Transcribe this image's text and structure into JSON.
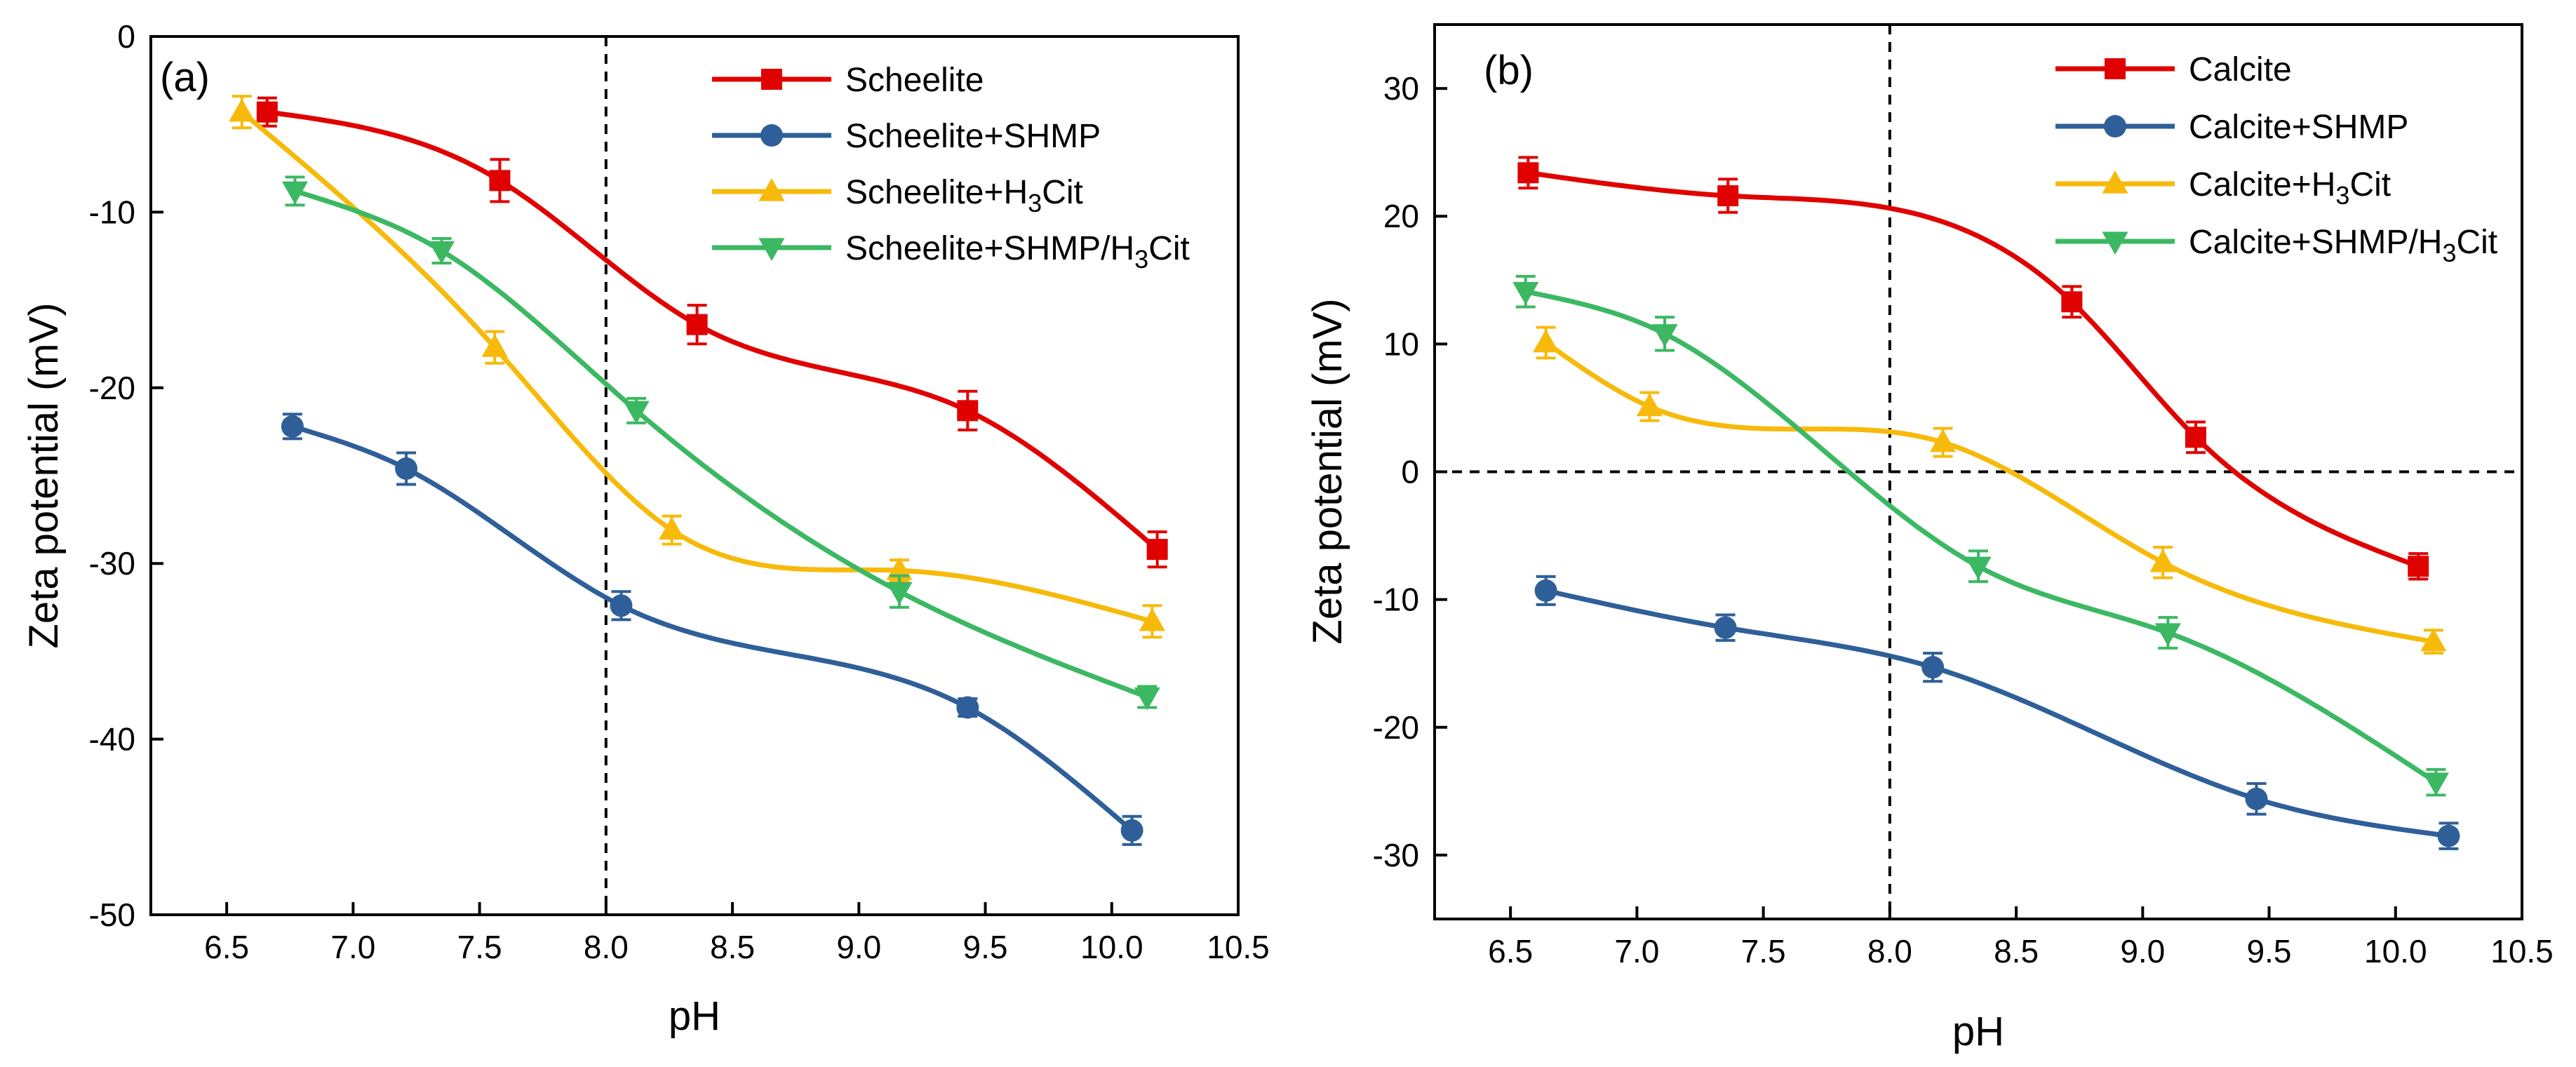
{
  "chart_data": [
    {
      "panel": "(a)",
      "type": "line",
      "xlabel": "pH",
      "ylabel": "Zeta potential (mV)",
      "xlim": [
        6.2,
        10.5
      ],
      "ylim": [
        -50,
        0
      ],
      "xticks": [
        6.5,
        7.0,
        7.5,
        8.0,
        8.5,
        9.0,
        9.5,
        10.0,
        10.5
      ],
      "yticks": [
        0,
        -10,
        -20,
        -30,
        -40,
        -50
      ],
      "xtick_labels": [
        "6.5",
        "7.0",
        "7.5",
        "8.0",
        "8.5",
        "9.0",
        "9.5",
        "10.0",
        "10.5"
      ],
      "ytick_labels": [
        "0",
        "-10",
        "-20",
        "-30",
        "-40",
        "-50"
      ],
      "reference_lines": [
        {
          "axis": "x",
          "value": 8.0,
          "style": "dashed"
        }
      ],
      "legend_position": "top-right",
      "series": [
        {
          "name": "Scheelite",
          "name_parts": [
            "Scheelite"
          ],
          "marker": "square",
          "color": "#E00000",
          "x": [
            6.66,
            7.58,
            8.36,
            9.43,
            10.18
          ],
          "y": [
            -4.3,
            -8.2,
            -16.4,
            -21.3,
            -29.2
          ],
          "err": [
            0.8,
            1.2,
            1.1,
            1.1,
            1.0
          ]
        },
        {
          "name": "Scheelite+SHMP",
          "name_parts": [
            "Scheelite+SHMP"
          ],
          "marker": "circle",
          "color": "#2F5F99",
          "x": [
            6.76,
            7.21,
            8.06,
            9.43,
            10.08
          ],
          "y": [
            -22.2,
            -24.6,
            -32.4,
            -38.2,
            -45.2
          ],
          "err": [
            0.7,
            0.9,
            0.8,
            0.5,
            0.8
          ]
        },
        {
          "name": "Scheelite+H3Cit",
          "name_parts": [
            "Scheelite+H",
            "3",
            "Cit"
          ],
          "marker": "triangle-up",
          "color": "#F7BA0B",
          "x": [
            6.56,
            7.56,
            8.26,
            9.16,
            10.16
          ],
          "y": [
            -4.3,
            -17.7,
            -28.1,
            -30.4,
            -33.3
          ],
          "err": [
            0.9,
            0.9,
            0.8,
            0.6,
            0.9
          ]
        },
        {
          "name": "Scheelite+SHMP/H3Cit",
          "name_parts": [
            "Scheelite+SHMP/H",
            "3",
            "Cit"
          ],
          "marker": "triangle-down",
          "color": "#3CB863",
          "x": [
            6.77,
            7.35,
            8.12,
            9.16,
            10.14
          ],
          "y": [
            -8.8,
            -12.2,
            -21.3,
            -31.6,
            -37.6
          ],
          "err": [
            0.8,
            0.7,
            0.7,
            0.9,
            0.6
          ]
        }
      ]
    },
    {
      "panel": "(b)",
      "type": "line",
      "xlabel": "pH",
      "ylabel": "Zeta potential (mV)",
      "xlim": [
        6.2,
        10.5
      ],
      "ylim": [
        -35,
        35
      ],
      "xticks": [
        6.5,
        7.0,
        7.5,
        8.0,
        8.5,
        9.0,
        9.5,
        10.0,
        10.5
      ],
      "yticks": [
        30,
        20,
        10,
        0,
        -10,
        -20,
        -30
      ],
      "xtick_labels": [
        "6.5",
        "7.0",
        "7.5",
        "8.0",
        "8.5",
        "9.0",
        "9.5",
        "10.0",
        "10.5"
      ],
      "ytick_labels": [
        "30",
        "20",
        "10",
        "0",
        "-10",
        "-20",
        "-30"
      ],
      "reference_lines": [
        {
          "axis": "x",
          "value": 8.0,
          "style": "dashed"
        },
        {
          "axis": "y",
          "value": 0,
          "style": "dashed"
        }
      ],
      "legend_position": "top-right",
      "series": [
        {
          "name": "Calcite",
          "name_parts": [
            "Calcite"
          ],
          "marker": "square",
          "color": "#E00000",
          "x": [
            6.57,
            7.36,
            8.72,
            9.21,
            10.09
          ],
          "y": [
            23.4,
            21.6,
            13.3,
            2.7,
            -7.4
          ],
          "err": [
            1.2,
            1.3,
            1.2,
            1.2,
            1.0
          ]
        },
        {
          "name": "Calcite+SHMP",
          "name_parts": [
            "Calcite+SHMP"
          ],
          "marker": "circle",
          "color": "#2F5F99",
          "x": [
            6.64,
            7.35,
            8.17,
            9.45,
            10.21
          ],
          "y": [
            -9.3,
            -12.2,
            -15.3,
            -25.6,
            -28.5
          ],
          "err": [
            1.1,
            1.0,
            1.1,
            1.2,
            1.0
          ]
        },
        {
          "name": "Calcite+H3Cit",
          "name_parts": [
            "Calcite+H",
            "3",
            "Cit"
          ],
          "marker": "triangle-up",
          "color": "#F7BA0B",
          "x": [
            6.64,
            7.05,
            8.21,
            9.08,
            10.15
          ],
          "y": [
            10.1,
            5.1,
            2.3,
            -7.1,
            -13.3
          ],
          "err": [
            1.2,
            1.1,
            1.1,
            1.2,
            0.9
          ]
        },
        {
          "name": "Calcite+SHMP/H3Cit",
          "name_parts": [
            "Calcite+SHMP/H",
            "3",
            "Cit"
          ],
          "marker": "triangle-down",
          "color": "#3CB863",
          "x": [
            6.56,
            7.11,
            8.35,
            9.1,
            10.16
          ],
          "y": [
            14.1,
            10.8,
            -7.4,
            -12.6,
            -24.3
          ],
          "err": [
            1.2,
            1.3,
            1.2,
            1.2,
            1.0
          ]
        }
      ]
    }
  ]
}
